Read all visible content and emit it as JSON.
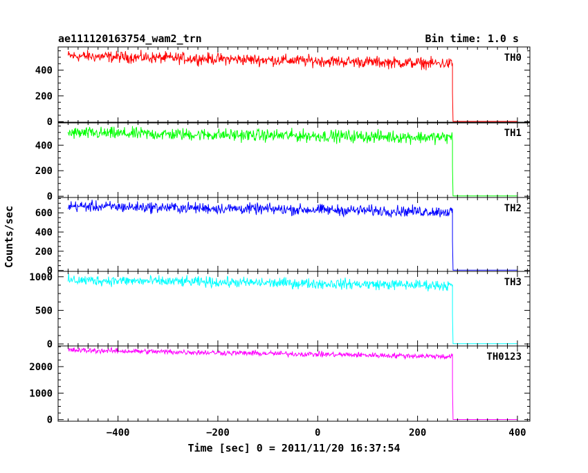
{
  "header": {
    "title": "ae111120163754_wam2_trn",
    "bin_time": "Bin time: 1.0 s"
  },
  "axes": {
    "xlabel": "Time [sec] 0 = 2011/11/20 16:37:54",
    "ylabel": "Counts/sec",
    "xlim": [
      -520,
      425
    ],
    "xticks": [
      -400,
      -200,
      0,
      200,
      400
    ],
    "xtick_labels": [
      "−400",
      "−200",
      "0",
      "200",
      "400"
    ]
  },
  "chart_data": {
    "type": "line",
    "title": "ae111120163754_wam2_trn",
    "xlabel": "Time [sec] 0 = 2011/11/20 16:37:54",
    "ylabel": "Counts/sec",
    "x_range": [
      -500,
      400
    ],
    "drop_time": 270,
    "series": [
      {
        "name": "TH0",
        "color": "#ff0000",
        "start_level": 510,
        "end_level": 450,
        "noise": 22,
        "after_drop": 2,
        "ylim": [
          -10,
          580
        ],
        "yticks": [
          0,
          200,
          400
        ],
        "ytick_labels": [
          "0",
          "200",
          "400"
        ]
      },
      {
        "name": "TH1",
        "color": "#00ff00",
        "start_level": 495,
        "end_level": 460,
        "noise": 24,
        "after_drop": 2,
        "ylim": [
          -10,
          580
        ],
        "yticks": [
          0,
          200,
          400
        ],
        "ytick_labels": [
          "0",
          "200",
          "400"
        ]
      },
      {
        "name": "TH2",
        "color": "#0000ff",
        "start_level": 670,
        "end_level": 610,
        "noise": 28,
        "after_drop": 3,
        "ylim": [
          -10,
          760
        ],
        "yticks": [
          0,
          200,
          400,
          600
        ],
        "ytick_labels": [
          "0",
          "200",
          "400",
          "600"
        ]
      },
      {
        "name": "TH3",
        "color": "#00ffff",
        "start_level": 950,
        "end_level": 870,
        "noise": 38,
        "after_drop": 4,
        "ylim": [
          -30,
          1080
        ],
        "yticks": [
          0,
          500,
          1000
        ],
        "ytick_labels": [
          "0",
          "500",
          "1000"
        ]
      },
      {
        "name": "TH0123",
        "color": "#ff00ff",
        "start_level": 2620,
        "end_level": 2380,
        "noise": 50,
        "after_drop": 6,
        "ylim": [
          -60,
          2780
        ],
        "yticks": [
          0,
          1000,
          2000
        ],
        "ytick_labels": [
          "0",
          "1000",
          "2000"
        ]
      }
    ]
  }
}
